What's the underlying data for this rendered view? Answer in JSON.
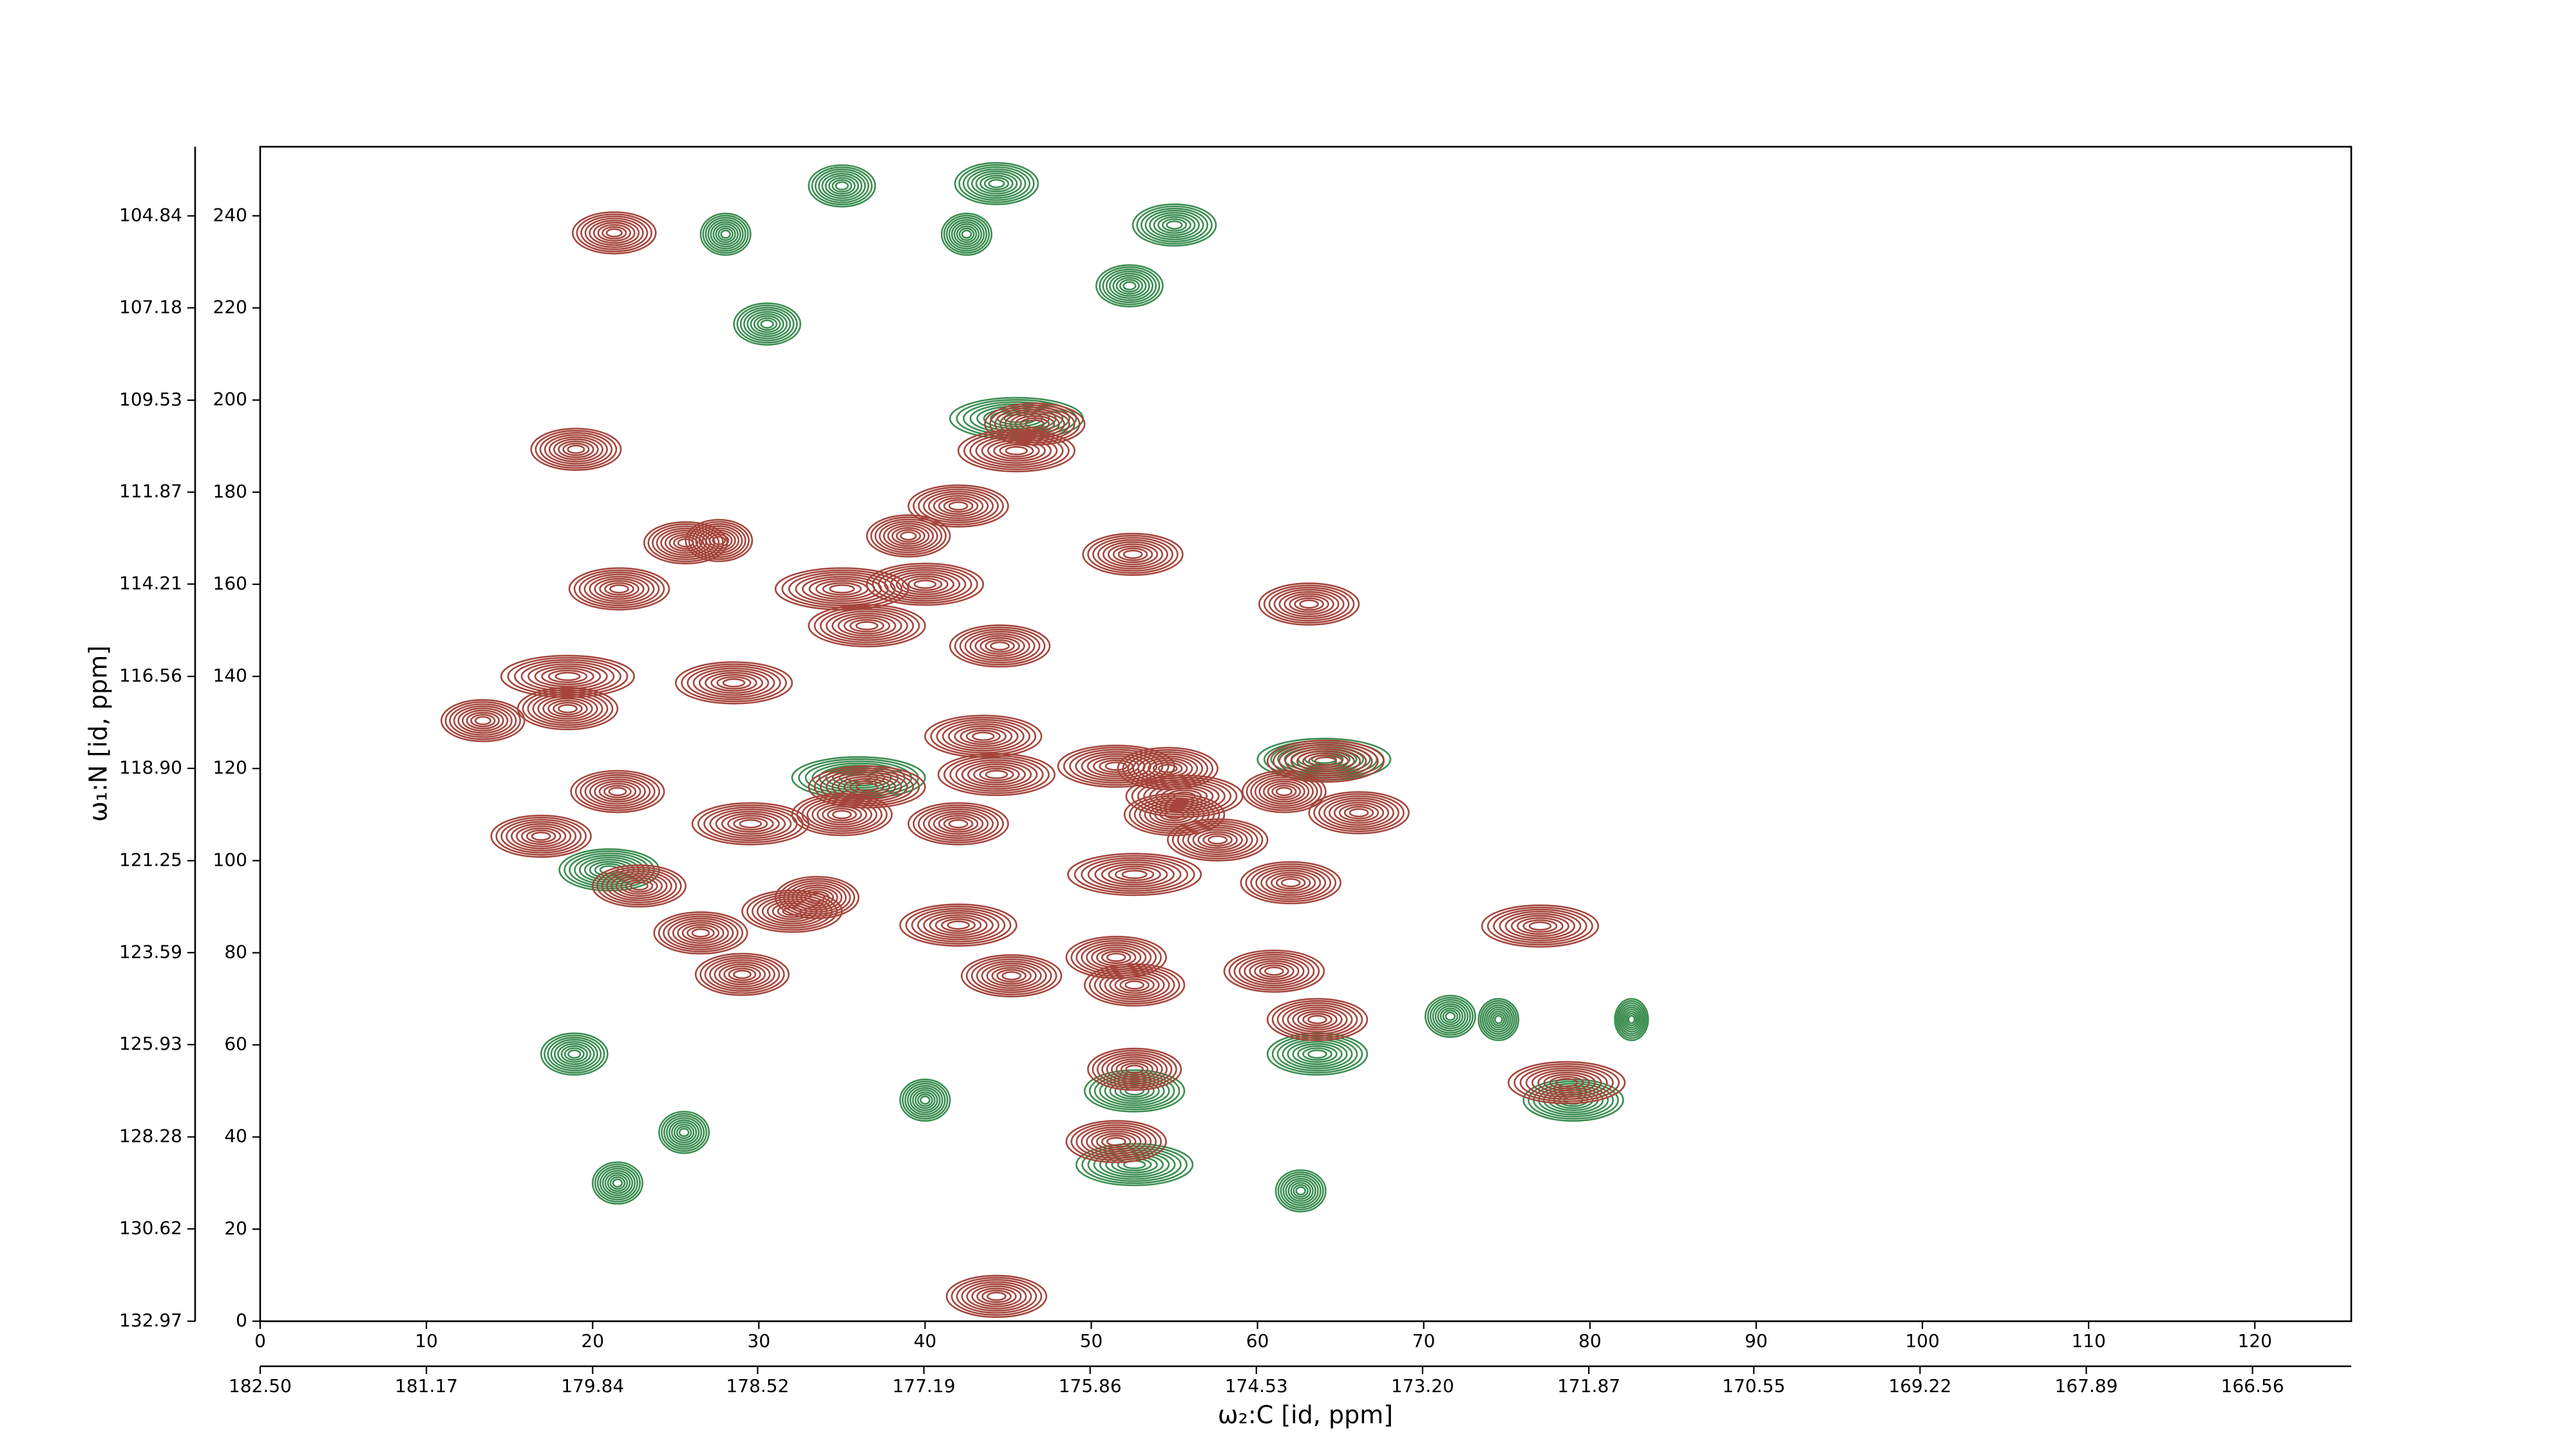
{
  "chart_data": {
    "type": "contour",
    "x_label": "ω₂:C [id, ppm]",
    "y_label": "ω₁:N [id, ppm]",
    "xlim": [
      0,
      125.8
    ],
    "xticks": [
      0,
      10,
      20,
      30,
      40,
      50,
      60,
      70,
      80,
      90,
      100,
      110,
      120
    ],
    "ylim": [
      0,
      255
    ],
    "yticks": [
      0,
      20,
      40,
      60,
      80,
      100,
      120,
      140,
      160,
      180,
      200,
      220,
      240
    ],
    "x2lim": [
      182.5,
      165.77
    ],
    "x2ticks": [
      {
        "value": 182.5,
        "label": "182.50"
      },
      181.17,
      179.84,
      178.52,
      177.19,
      175.86,
      174.53,
      {
        "value": 173.2,
        "label": "173.20"
      },
      171.87,
      170.55,
      169.22,
      167.89,
      166.56
    ],
    "y2lim": [
      132.97,
      103.08
    ],
    "y2ticks": [
      132.97,
      130.62,
      128.28,
      125.93,
      123.59,
      121.25,
      {
        "value": 118.9,
        "label": "118.90"
      },
      116.56,
      114.21,
      111.87,
      109.53,
      107.18,
      104.84
    ],
    "peaks": [
      {
        "color": "#3b8d50",
        "x": [
          35,
          44.3,
          55,
          30.5,
          52.3,
          28,
          42.5,
          45.5,
          71.6,
          74.5,
          82.5,
          21.5,
          62.6,
          40,
          25.5,
          18.9,
          52.6,
          63.6,
          79,
          64,
          52.6,
          36,
          21
        ],
        "y": [
          246.5,
          247,
          238,
          216.5,
          224.8,
          236,
          236,
          196,
          66.2,
          65.5,
          65.5,
          30,
          28.3,
          48,
          41,
          58,
          34,
          58,
          48,
          122,
          50,
          118,
          98
        ],
        "widths": [
          2,
          2.5,
          2.5,
          2,
          2,
          1.5,
          1.5,
          4,
          1.5,
          1.2,
          1,
          1.5,
          1.5,
          1.5,
          1.5,
          2,
          3.5,
          3,
          3,
          4,
          3,
          4,
          3
        ]
      },
      {
        "color": "#a5453c",
        "x": [
          21.3,
          19,
          25.6,
          27.6,
          21.6,
          13.4,
          18.5,
          18.5,
          21.5,
          16.9,
          22.8,
          26.5,
          29,
          32,
          33.5,
          29.5,
          28.5,
          36.5,
          35,
          36.5,
          35,
          40,
          39,
          42,
          45.5,
          46.6,
          44.5,
          43.5,
          44.3,
          42,
          42,
          45.2,
          44.3,
          52.5,
          51.5,
          52.6,
          51.5,
          52.6,
          52.6,
          51.5,
          54.6,
          55.6,
          55,
          57.6,
          61.6,
          64.1,
          66.1,
          63.1,
          62,
          61,
          63.6,
          77,
          78.6
        ],
        "y": [
          236.3,
          189.3,
          169,
          169.5,
          159,
          130.4,
          140,
          133,
          115,
          105.3,
          94.5,
          84.3,
          75.3,
          89,
          92,
          108,
          138.6,
          116,
          110,
          151,
          159,
          160,
          170.5,
          177,
          189,
          194.8,
          146.6,
          127,
          118.7,
          108,
          86,
          75,
          5.4,
          166.5,
          120.5,
          97,
          79,
          73,
          54.7,
          39,
          120,
          114,
          110,
          104.5,
          115,
          121.6,
          110.4,
          155.7,
          95.2,
          76,
          65.5,
          85.8,
          51.8
        ],
        "widths": [
          2.5,
          2.7,
          2.5,
          2,
          3,
          2.5,
          4,
          3,
          2.8,
          3,
          2.8,
          2.8,
          2.8,
          3,
          2.5,
          3.5,
          3.5,
          3.5,
          3,
          3.5,
          4,
          3.5,
          2.5,
          3,
          3.5,
          3,
          3,
          3.5,
          3.5,
          3,
          3.5,
          3,
          3,
          3,
          3.5,
          4,
          3,
          3,
          2.8,
          3,
          3,
          3.5,
          3,
          3,
          2.5,
          3.5,
          3,
          3,
          3,
          3,
          3,
          3.5,
          3.5
        ]
      }
    ]
  }
}
